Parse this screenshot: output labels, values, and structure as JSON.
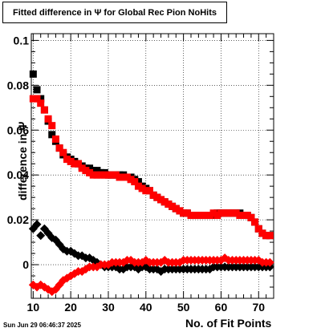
{
  "chart_data": {
    "type": "scatter",
    "title": "Fitted difference in  Ψ  for Global Rec Pion NoHits",
    "xlabel": "No. of Fit Points",
    "ylabel": "difference in  Ψ",
    "xlim": [
      9.5,
      74
    ],
    "ylim": [
      -0.015,
      0.103
    ],
    "x_ticks": [
      10,
      20,
      30,
      40,
      50,
      60,
      70
    ],
    "y_ticks": [
      0,
      0.02,
      0.04,
      0.06,
      0.08,
      0.1
    ],
    "y_tick_labels": [
      "0",
      "0.02",
      "0.04",
      "0.06",
      "0.08",
      "0.1"
    ],
    "grid": true,
    "series": [
      {
        "marker": "square",
        "color": "#000000",
        "x": [
          10,
          11,
          12,
          13,
          14,
          15,
          16,
          17,
          18,
          19,
          20,
          21,
          22,
          23,
          24,
          25,
          26,
          27,
          28,
          29,
          30,
          31,
          32,
          33,
          34,
          35,
          36,
          37,
          38,
          39,
          40,
          41,
          42,
          43,
          44,
          45,
          46,
          47,
          48,
          49,
          50,
          51,
          52,
          53,
          54,
          55,
          56,
          57,
          58,
          59,
          60,
          61,
          62,
          63,
          64,
          65,
          66,
          67,
          68,
          69,
          70,
          71,
          72,
          73
        ],
        "y": [
          0.085,
          0.078,
          0.074,
          0.069,
          0.064,
          0.058,
          0.055,
          0.052,
          0.049,
          0.048,
          0.047,
          0.046,
          0.045,
          0.044,
          0.043,
          0.043,
          0.042,
          0.042,
          0.041,
          0.041,
          0.04,
          0.04,
          0.04,
          0.04,
          0.04,
          0.039,
          0.039,
          0.038,
          0.037,
          0.035,
          0.034,
          0.033,
          0.031,
          0.03,
          0.029,
          0.028,
          0.027,
          0.026,
          0.025,
          0.024,
          0.023,
          0.023,
          0.022,
          0.022,
          0.022,
          0.022,
          0.022,
          0.022,
          0.022,
          0.023,
          0.023,
          0.023,
          0.023,
          0.023,
          0.023,
          0.023,
          0.022,
          0.022,
          0.021,
          0.019,
          0.016,
          0.014,
          0.013,
          0.013
        ]
      },
      {
        "marker": "square",
        "color": "#ff0000",
        "x": [
          10,
          11,
          12,
          13,
          14,
          15,
          16,
          17,
          18,
          19,
          20,
          21,
          22,
          23,
          24,
          25,
          26,
          27,
          28,
          29,
          30,
          31,
          32,
          33,
          34,
          35,
          36,
          37,
          38,
          39,
          40,
          41,
          42,
          43,
          44,
          45,
          46,
          47,
          48,
          49,
          50,
          51,
          52,
          53,
          54,
          55,
          56,
          57,
          58,
          59,
          60,
          61,
          62,
          63,
          64,
          65,
          66,
          67,
          68,
          69,
          70,
          71,
          72,
          73
        ],
        "y": [
          0.074,
          0.074,
          0.072,
          0.069,
          0.065,
          0.062,
          0.056,
          0.052,
          0.05,
          0.047,
          0.046,
          0.045,
          0.045,
          0.043,
          0.042,
          0.041,
          0.04,
          0.04,
          0.04,
          0.04,
          0.04,
          0.04,
          0.04,
          0.039,
          0.039,
          0.039,
          0.038,
          0.037,
          0.035,
          0.034,
          0.033,
          0.033,
          0.031,
          0.03,
          0.029,
          0.028,
          0.027,
          0.026,
          0.025,
          0.024,
          0.023,
          0.023,
          0.022,
          0.022,
          0.022,
          0.022,
          0.022,
          0.022,
          0.023,
          0.022,
          0.023,
          0.023,
          0.023,
          0.023,
          0.023,
          0.022,
          0.022,
          0.022,
          0.021,
          0.019,
          0.016,
          0.014,
          0.013,
          0.013
        ]
      },
      {
        "marker": "diamond",
        "color": "#000000",
        "x": [
          10,
          11,
          12,
          13,
          14,
          15,
          16,
          17,
          18,
          19,
          20,
          21,
          22,
          23,
          24,
          25,
          26,
          27,
          28,
          29,
          30,
          31,
          32,
          33,
          34,
          35,
          36,
          37,
          38,
          39,
          40,
          41,
          42,
          43,
          44,
          45,
          46,
          47,
          48,
          49,
          50,
          51,
          52,
          53,
          54,
          55,
          56,
          57,
          58,
          59,
          60,
          61,
          62,
          63,
          64,
          65,
          66,
          67,
          68,
          69,
          70,
          71,
          72,
          73
        ],
        "y": [
          0.016,
          0.018,
          0.013,
          0.016,
          0.014,
          0.012,
          0.011,
          0.009,
          0.007,
          0.006,
          0.006,
          0.005,
          0.004,
          0.004,
          0.003,
          0.003,
          0.002,
          0.001,
          0.0,
          -0.001,
          -0.001,
          -0.001,
          -0.001,
          -0.002,
          -0.002,
          -0.001,
          -0.001,
          -0.001,
          -0.002,
          -0.001,
          -0.001,
          -0.002,
          -0.002,
          -0.002,
          -0.003,
          -0.002,
          -0.002,
          -0.002,
          -0.002,
          -0.002,
          -0.002,
          -0.002,
          -0.002,
          -0.002,
          -0.002,
          -0.002,
          -0.002,
          -0.002,
          -0.001,
          -0.001,
          -0.001,
          -0.001,
          -0.001,
          -0.001,
          -0.001,
          -0.001,
          -0.001,
          -0.001,
          -0.001,
          -0.001,
          -0.001,
          -0.001,
          -0.001,
          -0.001
        ]
      },
      {
        "marker": "diamond",
        "color": "#ff0000",
        "x": [
          10,
          11,
          12,
          13,
          14,
          15,
          16,
          17,
          18,
          19,
          20,
          21,
          22,
          23,
          24,
          25,
          26,
          27,
          28,
          29,
          30,
          31,
          32,
          33,
          34,
          35,
          36,
          37,
          38,
          39,
          40,
          41,
          42,
          43,
          44,
          45,
          46,
          47,
          48,
          49,
          50,
          51,
          52,
          53,
          54,
          55,
          56,
          57,
          58,
          59,
          60,
          61,
          62,
          63,
          64,
          65,
          66,
          67,
          68,
          69,
          70,
          71,
          72,
          73
        ],
        "y": [
          -0.009,
          -0.01,
          -0.009,
          -0.01,
          -0.011,
          -0.012,
          -0.011,
          -0.009,
          -0.007,
          -0.006,
          -0.005,
          -0.004,
          -0.003,
          -0.003,
          -0.002,
          -0.001,
          -0.001,
          -0.001,
          0.0,
          0.0,
          0.0,
          0.001,
          0.001,
          0.001,
          0.001,
          0.002,
          0.002,
          0.001,
          0.001,
          0.001,
          0.002,
          0.001,
          0.001,
          0.001,
          0.001,
          0.002,
          0.001,
          0.001,
          0.001,
          0.001,
          0.002,
          0.002,
          0.002,
          0.002,
          0.002,
          0.002,
          0.002,
          0.002,
          0.002,
          0.002,
          0.002,
          0.003,
          0.002,
          0.002,
          0.002,
          0.002,
          0.002,
          0.002,
          0.002,
          0.002,
          0.002,
          0.001,
          0.001,
          0.001
        ]
      }
    ]
  },
  "datestamp": "Sun Jun 29 06:46:37 2025"
}
